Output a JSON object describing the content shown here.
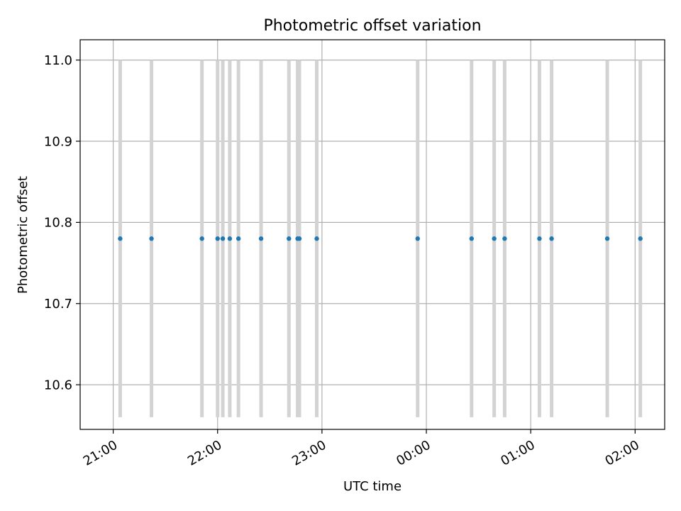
{
  "chart_data": {
    "type": "scatter",
    "title": "Photometric offset variation",
    "xlabel": "UTC time",
    "ylabel": "Photometric offset",
    "x_tick_labels": [
      "21:00",
      "22:00",
      "23:00",
      "00:00",
      "01:00",
      "02:00"
    ],
    "x_ticks": [
      "2000-01-01T21:00",
      "2000-01-01T22:00",
      "2000-01-01T23:00",
      "2000-01-02T00:00",
      "2000-01-02T01:00",
      "2000-01-02T02:00"
    ],
    "xlim": [
      "2000-01-01T20:41",
      "2000-01-02T02:17"
    ],
    "ylim": [
      10.545,
      11.025
    ],
    "y_ticks": [
      10.6,
      10.7,
      10.8,
      10.9,
      11.0
    ],
    "y_tick_labels": [
      "10.6",
      "10.7",
      "10.8",
      "10.9",
      "11.0"
    ],
    "grid": true,
    "error_bar_color": "#d3d3d3",
    "marker_color": "#1f77b4",
    "series": [
      {
        "x": [
          "2000-01-01T21:04",
          "2000-01-01T21:22",
          "2000-01-01T21:51",
          "2000-01-01T22:00",
          "2000-01-01T22:03",
          "2000-01-01T22:07",
          "2000-01-01T22:12",
          "2000-01-01T22:25",
          "2000-01-01T22:41",
          "2000-01-01T22:46",
          "2000-01-01T22:47",
          "2000-01-01T22:57",
          "2000-01-01T23:55",
          "2000-01-02T00:26",
          "2000-01-02T00:39",
          "2000-01-02T00:45",
          "2000-01-02T01:05",
          "2000-01-02T01:12",
          "2000-01-02T01:44",
          "2000-01-02T02:03"
        ],
        "y": [
          10.78,
          10.78,
          10.78,
          10.78,
          10.78,
          10.78,
          10.78,
          10.78,
          10.78,
          10.78,
          10.78,
          10.78,
          10.78,
          10.78,
          10.78,
          10.78,
          10.78,
          10.78,
          10.78,
          10.78
        ],
        "yerr_low": [
          10.56,
          10.56,
          10.56,
          10.56,
          10.56,
          10.56,
          10.56,
          10.56,
          10.56,
          10.56,
          10.56,
          10.56,
          10.56,
          10.56,
          10.56,
          10.56,
          10.56,
          10.56,
          10.56,
          10.56
        ],
        "yerr_high": [
          11.0,
          11.0,
          11.0,
          11.0,
          11.0,
          11.0,
          11.0,
          11.0,
          11.0,
          11.0,
          11.0,
          11.0,
          11.0,
          11.0,
          11.0,
          11.0,
          11.0,
          11.0,
          11.0,
          11.0
        ]
      }
    ]
  }
}
